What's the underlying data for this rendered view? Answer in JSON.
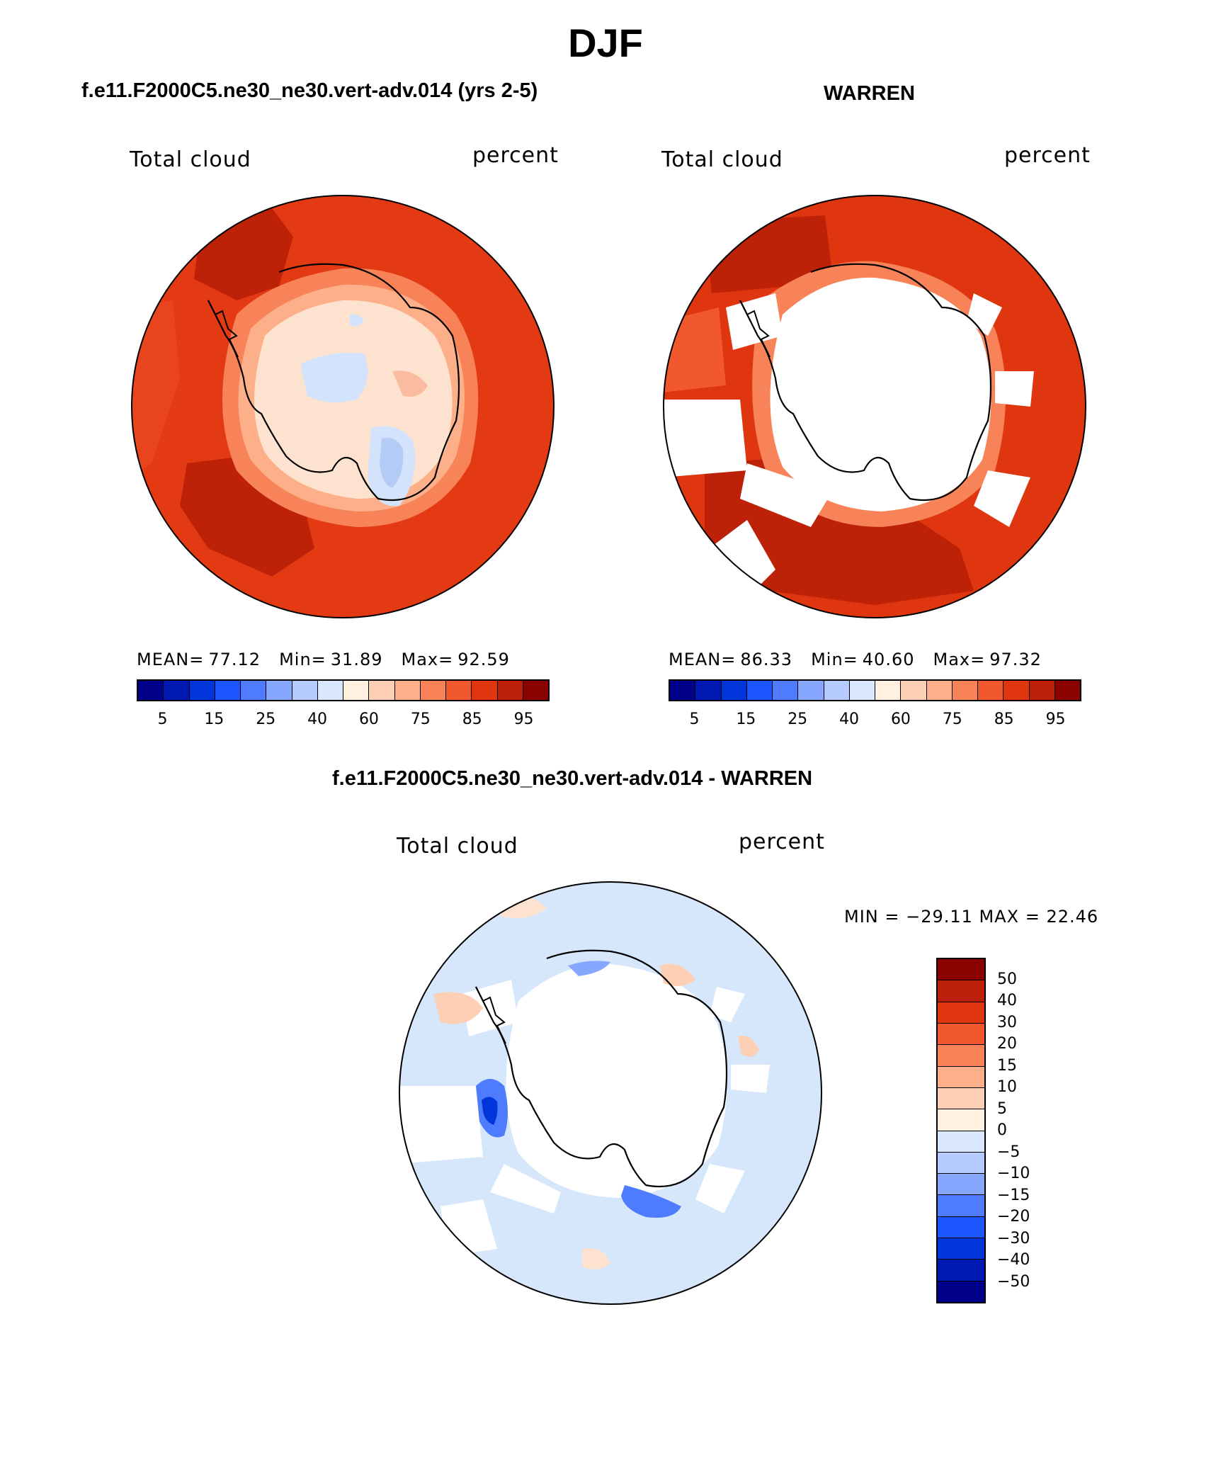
{
  "figure_title": "DJF",
  "panels": {
    "model": {
      "title": "f.e11.F2000C5.ne30_ne30.vert-adv.014 (yrs 2-5)",
      "var_label": "Total cloud",
      "units": "percent",
      "mean_label": "MEAN=",
      "mean_value": "77.12",
      "min_label": "Min=",
      "min_value": "31.89",
      "max_label": "Max=",
      "max_value": "92.59"
    },
    "obs": {
      "title": "WARREN",
      "var_label": "Total cloud",
      "units": "percent",
      "mean_label": "MEAN=",
      "mean_value": "86.33",
      "min_label": "Min=",
      "min_value": "40.60",
      "max_label": "Max=",
      "max_value": "97.32"
    },
    "diff": {
      "title": "f.e11.F2000C5.ne30_ne30.vert-adv.014 - WARREN",
      "var_label": "Total cloud",
      "units": "percent",
      "minmax_text": "MIN = −29.11 MAX =   22.46"
    }
  },
  "abs_colorbar": {
    "colors": [
      "#00008a",
      "#0019b3",
      "#0035d9",
      "#1d55ff",
      "#4f7cff",
      "#87a7ff",
      "#b5caff",
      "#dae8ff",
      "#fff0e0",
      "#fdd0b5",
      "#fcaf88",
      "#f88358",
      "#f2582d",
      "#e03610",
      "#bc1f07",
      "#8b0000"
    ],
    "tick_labels": [
      "5",
      "15",
      "25",
      "40",
      "60",
      "75",
      "85",
      "95"
    ]
  },
  "diff_colorbar": {
    "colors_top_to_bottom": [
      "#8b0000",
      "#bc1f07",
      "#e03610",
      "#f2582d",
      "#f88358",
      "#fcaf88",
      "#fdd0b5",
      "#fff0e0",
      "#dae8ff",
      "#b5caff",
      "#87a7ff",
      "#4f7cff",
      "#1d55ff",
      "#0035d9",
      "#0019b3",
      "#00008a"
    ],
    "tick_labels": [
      "50",
      "40",
      "30",
      "20",
      "15",
      "10",
      "5",
      "0",
      "−5",
      "−10",
      "−15",
      "−20",
      "−30",
      "−40",
      "−50"
    ]
  },
  "palette": {
    "ocean_model": "#e33a14",
    "ocean_dark": "#bd2209",
    "land_light": "#fde3cf",
    "land_mid": "#f9bca0",
    "land_blue": "#d3e3fb",
    "land_blue_deep": "#b3cbf5",
    "diff_ocean": "#d6e6fb",
    "missing": "#ffffff"
  }
}
